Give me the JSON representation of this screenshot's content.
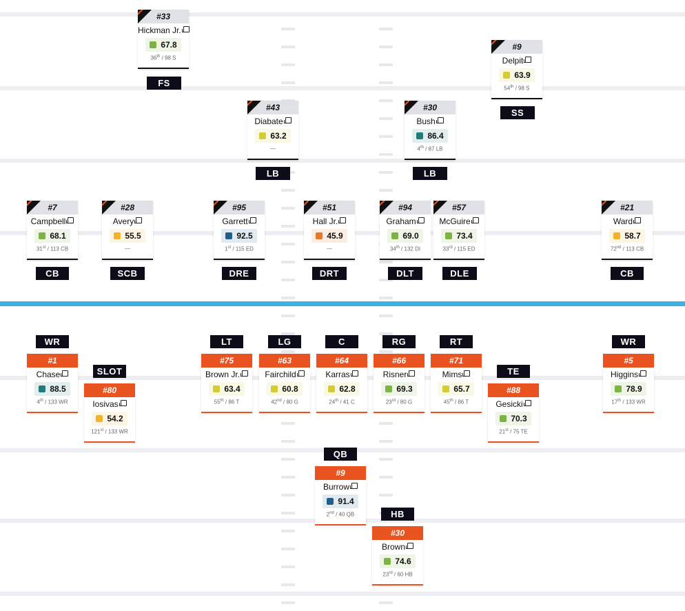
{
  "colors": {
    "elite": "#1e7c7a",
    "high": "#1f5f8b",
    "good": "#7cb342",
    "avg": "#d4cc35",
    "below": "#f3b22a",
    "poor": "#e9782a",
    "offense_accent": "#e8531f",
    "scrimmage_line": "#3ab2e3"
  },
  "players": [
    {
      "id": "fs",
      "side": "def",
      "number": "#33",
      "name": "Hickman Jr.",
      "grade": "67.8",
      "tier": "good",
      "rank_n": "36",
      "rank_sfx": "th",
      "rank_rest": " / 98 S",
      "position": "FS"
    },
    {
      "id": "ss",
      "side": "def",
      "number": "#9",
      "name": "Delpit",
      "grade": "63.9",
      "tier": "avg",
      "rank_n": "54",
      "rank_sfx": "th",
      "rank_rest": " / 98 S",
      "position": "SS"
    },
    {
      "id": "lb1",
      "side": "def",
      "number": "#43",
      "name": "Diabate",
      "grade": "63.2",
      "tier": "avg",
      "rank_n": "",
      "rank_sfx": "",
      "rank_rest": "—",
      "position": "LB"
    },
    {
      "id": "lb2",
      "side": "def",
      "number": "#30",
      "name": "Bush",
      "grade": "86.4",
      "tier": "elite",
      "rank_n": "4",
      "rank_sfx": "th",
      "rank_rest": " / 87 LB",
      "position": "LB"
    },
    {
      "id": "cb1",
      "side": "def",
      "number": "#7",
      "name": "Campbell",
      "grade": "68.1",
      "tier": "good",
      "rank_n": "31",
      "rank_sfx": "st",
      "rank_rest": " / 113 CB",
      "position": "CB"
    },
    {
      "id": "scb",
      "side": "def",
      "number": "#28",
      "name": "Avery",
      "grade": "55.5",
      "tier": "below",
      "rank_n": "",
      "rank_sfx": "",
      "rank_rest": "—",
      "position": "SCB"
    },
    {
      "id": "dre",
      "side": "def",
      "number": "#95",
      "name": "Garrett",
      "grade": "92.5",
      "tier": "high",
      "rank_n": "1",
      "rank_sfx": "st",
      "rank_rest": " / 115 ED",
      "position": "DRE"
    },
    {
      "id": "drt",
      "side": "def",
      "number": "#51",
      "name": "Hall Jr.",
      "grade": "45.9",
      "tier": "poor",
      "rank_n": "",
      "rank_sfx": "",
      "rank_rest": "—",
      "position": "DRT"
    },
    {
      "id": "dlt",
      "side": "def",
      "number": "#94",
      "name": "Graham",
      "grade": "69.0",
      "tier": "good",
      "rank_n": "34",
      "rank_sfx": "th",
      "rank_rest": " / 132 DI",
      "position": "DLT"
    },
    {
      "id": "dle",
      "side": "def",
      "number": "#57",
      "name": "McGuire",
      "grade": "73.4",
      "tier": "good",
      "rank_n": "33",
      "rank_sfx": "rd",
      "rank_rest": " / 115 ED",
      "position": "DLE"
    },
    {
      "id": "cb2",
      "side": "def",
      "number": "#21",
      "name": "Ward",
      "grade": "58.7",
      "tier": "below",
      "rank_n": "72",
      "rank_sfx": "nd",
      "rank_rest": " / 113 CB",
      "position": "CB"
    },
    {
      "id": "wr1",
      "side": "off",
      "number": "#1",
      "name": "Chase",
      "grade": "88.5",
      "tier": "elite",
      "rank_n": "4",
      "rank_sfx": "th",
      "rank_rest": " / 133 WR",
      "position": "WR"
    },
    {
      "id": "slot",
      "side": "off",
      "number": "#80",
      "name": "Iosivas",
      "grade": "54.2",
      "tier": "below",
      "rank_n": "121",
      "rank_sfx": "st",
      "rank_rest": " / 133 WR",
      "position": "SLOT"
    },
    {
      "id": "lt",
      "side": "off",
      "number": "#75",
      "name": "Brown Jr.",
      "grade": "63.4",
      "tier": "avg",
      "rank_n": "55",
      "rank_sfx": "th",
      "rank_rest": " / 86 T",
      "position": "LT"
    },
    {
      "id": "lg",
      "side": "off",
      "number": "#63",
      "name": "Fairchild",
      "grade": "60.8",
      "tier": "avg",
      "rank_n": "42",
      "rank_sfx": "nd",
      "rank_rest": " / 80 G",
      "position": "LG"
    },
    {
      "id": "c",
      "side": "off",
      "number": "#64",
      "name": "Karras",
      "grade": "62.8",
      "tier": "avg",
      "rank_n": "24",
      "rank_sfx": "th",
      "rank_rest": " / 41 C",
      "position": "C"
    },
    {
      "id": "rg",
      "side": "off",
      "number": "#66",
      "name": "Risner",
      "grade": "69.3",
      "tier": "good",
      "rank_n": "23",
      "rank_sfx": "rd",
      "rank_rest": " / 80 G",
      "position": "RG"
    },
    {
      "id": "rt",
      "side": "off",
      "number": "#71",
      "name": "Mims",
      "grade": "65.7",
      "tier": "avg",
      "rank_n": "45",
      "rank_sfx": "th",
      "rank_rest": " / 86 T",
      "position": "RT"
    },
    {
      "id": "te",
      "side": "off",
      "number": "#88",
      "name": "Gesicki",
      "grade": "70.3",
      "tier": "good",
      "rank_n": "21",
      "rank_sfx": "st",
      "rank_rest": " / 75 TE",
      "position": "TE"
    },
    {
      "id": "wr2",
      "side": "off",
      "number": "#5",
      "name": "Higgins",
      "grade": "78.9",
      "tier": "good",
      "rank_n": "17",
      "rank_sfx": "th",
      "rank_rest": " / 133 WR",
      "position": "WR"
    },
    {
      "id": "qb",
      "side": "off",
      "number": "#9",
      "name": "Burrow",
      "grade": "91.4",
      "tier": "high",
      "rank_n": "2",
      "rank_sfx": "nd",
      "rank_rest": " / 40 QB",
      "position": "QB"
    },
    {
      "id": "hb",
      "side": "off",
      "number": "#30",
      "name": "Brown",
      "grade": "74.6",
      "tier": "good",
      "rank_n": "23",
      "rank_sfx": "rd",
      "rank_rest": " / 60 HB",
      "position": "HB"
    }
  ]
}
